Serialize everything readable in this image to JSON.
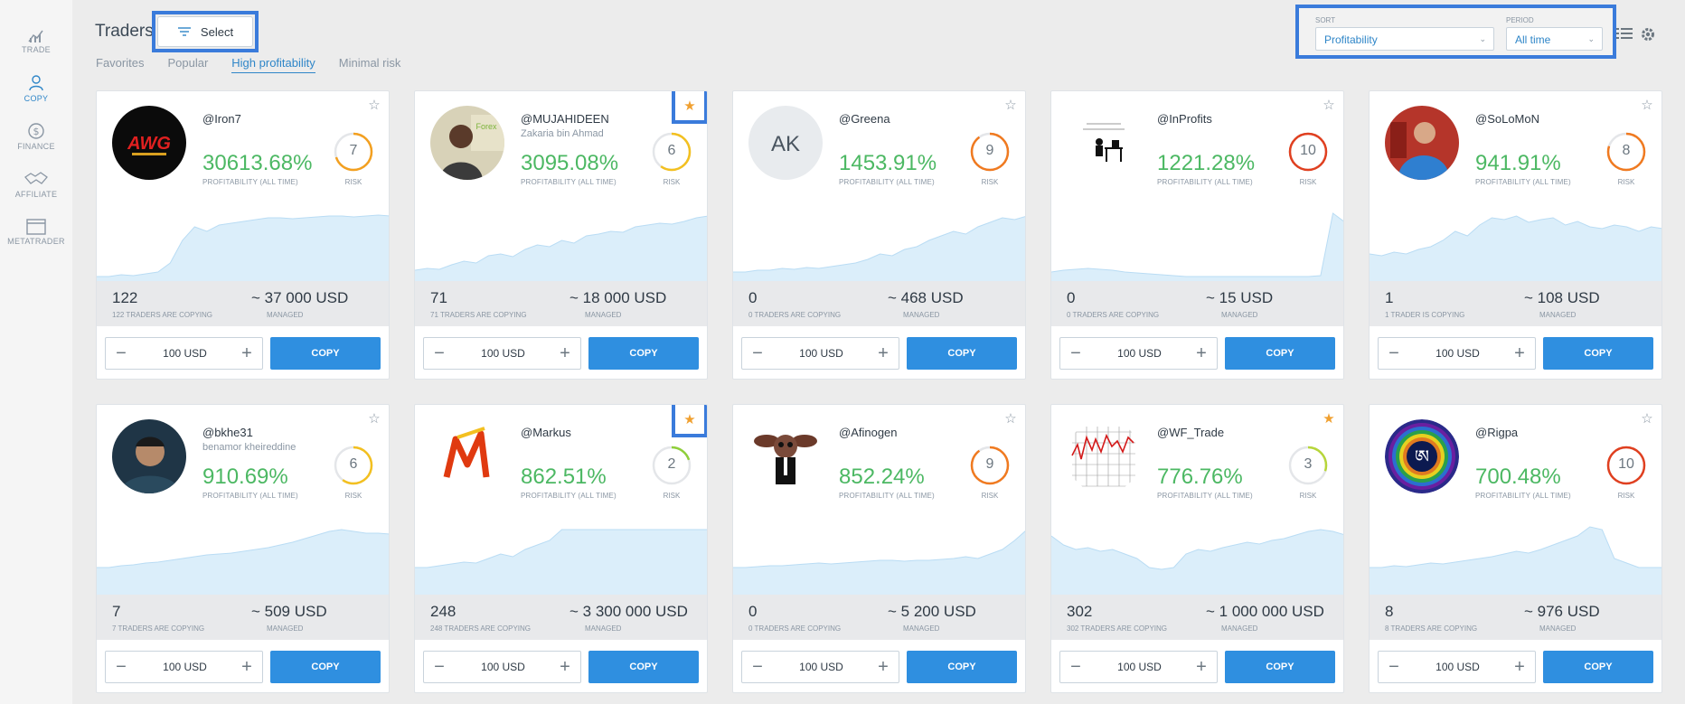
{
  "sidebar": {
    "items": [
      {
        "label": "TRADE",
        "icon": "chart-icon"
      },
      {
        "label": "COPY",
        "icon": "user-copy-icon"
      },
      {
        "label": "FINANCE",
        "icon": "dollar-icon"
      },
      {
        "label": "AFFILIATE",
        "icon": "handshake-icon"
      },
      {
        "label": "METATRADER",
        "icon": "window-icon"
      }
    ]
  },
  "header": {
    "title": "Traders",
    "select_label": "Select",
    "tabs": [
      "Favorites",
      "Popular",
      "High profitability",
      "Minimal risk"
    ],
    "active_tab": "High profitability",
    "sort_label": "SORT",
    "sort_value": "Profitability",
    "period_label": "PERIOD",
    "period_value": "All time"
  },
  "labels": {
    "profitability": "PROFITABILITY (ALL TIME)",
    "risk": "RISK",
    "managed": "MANAGED",
    "copy": "COPY",
    "amount": "100 USD",
    "minus": "−",
    "plus": "+"
  },
  "colors": {
    "accent": "#2f8fe0",
    "profit_green": "#4cb863",
    "star_favorite": "#f0a030",
    "highlight_border": "#3a7bdb"
  },
  "traders": [
    {
      "name": "@Iron7",
      "sub": "",
      "profit": "30613.68%",
      "risk": "7",
      "copiers": "122",
      "copiers_label": "122 TRADERS ARE COPYING",
      "managed": "~ 37 000 USD",
      "favorite": false,
      "highlight": false,
      "avatar_type": "logo-anw",
      "spark": [
        0.05,
        0.05,
        0.07,
        0.06,
        0.08,
        0.1,
        0.2,
        0.45,
        0.6,
        0.55,
        0.62,
        0.64,
        0.66,
        0.68,
        0.7,
        0.7,
        0.69,
        0.7,
        0.71,
        0.72,
        0.72,
        0.71,
        0.72,
        0.73,
        0.72
      ]
    },
    {
      "name": "@MUJAHIDEEN",
      "sub": "Zakaria bin Ahmad",
      "profit": "3095.08%",
      "risk": "6",
      "copiers": "71",
      "copiers_label": "71 TRADERS ARE COPYING",
      "managed": "~ 18 000 USD",
      "favorite": true,
      "highlight": true,
      "avatar_type": "photo-man",
      "spark": [
        0.12,
        0.14,
        0.13,
        0.18,
        0.22,
        0.2,
        0.28,
        0.3,
        0.27,
        0.35,
        0.4,
        0.38,
        0.45,
        0.42,
        0.5,
        0.52,
        0.55,
        0.54,
        0.6,
        0.62,
        0.64,
        0.63,
        0.66,
        0.7,
        0.72
      ]
    },
    {
      "name": "@Greena",
      "sub": "",
      "profit": "1453.91%",
      "risk": "9",
      "copiers": "0",
      "copiers_label": "0 TRADERS ARE COPYING",
      "managed": "~ 468 USD",
      "favorite": false,
      "highlight": false,
      "avatar_type": "initials",
      "initials": "AK",
      "spark": [
        0.1,
        0.1,
        0.12,
        0.12,
        0.14,
        0.13,
        0.15,
        0.14,
        0.16,
        0.18,
        0.2,
        0.24,
        0.3,
        0.28,
        0.35,
        0.38,
        0.45,
        0.5,
        0.55,
        0.52,
        0.6,
        0.65,
        0.7,
        0.68,
        0.72
      ]
    },
    {
      "name": "@InProfits",
      "sub": "",
      "profit": "1221.28%",
      "risk": "10",
      "copiers": "0",
      "copiers_label": "0 TRADERS ARE COPYING",
      "managed": "~ 15 USD",
      "favorite": false,
      "highlight": false,
      "avatar_type": "drawing-desk",
      "spark": [
        0.1,
        0.12,
        0.13,
        0.14,
        0.13,
        0.12,
        0.1,
        0.09,
        0.08,
        0.07,
        0.06,
        0.05,
        0.05,
        0.05,
        0.05,
        0.05,
        0.05,
        0.05,
        0.05,
        0.05,
        0.05,
        0.05,
        0.06,
        0.75,
        0.65
      ]
    },
    {
      "name": "@SoLoMoN",
      "sub": "",
      "profit": "941.91%",
      "risk": "8",
      "copiers": "1",
      "copiers_label": "1 TRADER IS COPYING",
      "managed": "~ 108 USD",
      "favorite": false,
      "highlight": false,
      "avatar_type": "photo-blue",
      "spark": [
        0.3,
        0.28,
        0.32,
        0.3,
        0.35,
        0.38,
        0.45,
        0.55,
        0.5,
        0.62,
        0.7,
        0.68,
        0.72,
        0.65,
        0.68,
        0.7,
        0.62,
        0.66,
        0.6,
        0.58,
        0.62,
        0.6,
        0.55,
        0.6,
        0.58
      ]
    },
    {
      "name": "@bkhe31",
      "sub": "benamor kheireddine",
      "profit": "910.69%",
      "risk": "6",
      "copiers": "7",
      "copiers_label": "7 TRADERS ARE COPYING",
      "managed": "~ 509 USD",
      "favorite": false,
      "highlight": false,
      "avatar_type": "photo-dark",
      "spark": [
        0.3,
        0.3,
        0.32,
        0.33,
        0.35,
        0.36,
        0.38,
        0.4,
        0.42,
        0.44,
        0.45,
        0.46,
        0.48,
        0.5,
        0.52,
        0.55,
        0.58,
        0.62,
        0.66,
        0.7,
        0.72,
        0.7,
        0.68,
        0.68,
        0.67
      ]
    },
    {
      "name": "@Markus",
      "sub": "",
      "profit": "862.51%",
      "risk": "2",
      "copiers": "248",
      "copiers_label": "248 TRADERS ARE COPYING",
      "managed": "~ 3 300 000 USD",
      "favorite": true,
      "highlight": true,
      "avatar_type": "logo-m",
      "spark": [
        0.3,
        0.3,
        0.32,
        0.34,
        0.36,
        0.35,
        0.4,
        0.45,
        0.42,
        0.5,
        0.55,
        0.6,
        0.72,
        0.72,
        0.72,
        0.72,
        0.72,
        0.72,
        0.72,
        0.72,
        0.72,
        0.72,
        0.72,
        0.72,
        0.72
      ]
    },
    {
      "name": "@Afinogen",
      "sub": "",
      "profit": "852.24%",
      "risk": "9",
      "copiers": "0",
      "copiers_label": "0 TRADERS ARE COPYING",
      "managed": "~ 5 200 USD",
      "favorite": false,
      "highlight": false,
      "avatar_type": "gremlin",
      "spark": [
        0.3,
        0.3,
        0.31,
        0.32,
        0.32,
        0.33,
        0.34,
        0.35,
        0.34,
        0.35,
        0.36,
        0.37,
        0.38,
        0.38,
        0.37,
        0.38,
        0.38,
        0.39,
        0.4,
        0.42,
        0.4,
        0.45,
        0.5,
        0.6,
        0.72
      ]
    },
    {
      "name": "@WF_Trade",
      "sub": "",
      "profit": "776.76%",
      "risk": "3",
      "copiers": "302",
      "copiers_label": "302 TRADERS ARE COPYING",
      "managed": "~ 1 000 000 USD",
      "favorite": true,
      "highlight": false,
      "avatar_type": "chart-grid",
      "spark": [
        0.65,
        0.55,
        0.5,
        0.52,
        0.48,
        0.5,
        0.45,
        0.4,
        0.3,
        0.28,
        0.3,
        0.45,
        0.5,
        0.48,
        0.52,
        0.55,
        0.58,
        0.56,
        0.6,
        0.62,
        0.66,
        0.7,
        0.72,
        0.7,
        0.66
      ]
    },
    {
      "name": "@Rigpa",
      "sub": "",
      "profit": "700.48%",
      "risk": "10",
      "copiers": "8",
      "copiers_label": "8 TRADERS ARE COPYING",
      "managed": "~ 976 USD",
      "favorite": false,
      "highlight": false,
      "avatar_type": "rainbow",
      "spark": [
        0.3,
        0.3,
        0.32,
        0.31,
        0.33,
        0.35,
        0.34,
        0.36,
        0.38,
        0.4,
        0.42,
        0.45,
        0.48,
        0.46,
        0.5,
        0.55,
        0.6,
        0.65,
        0.75,
        0.72,
        0.4,
        0.35,
        0.3,
        0.3,
        0.3
      ]
    }
  ]
}
